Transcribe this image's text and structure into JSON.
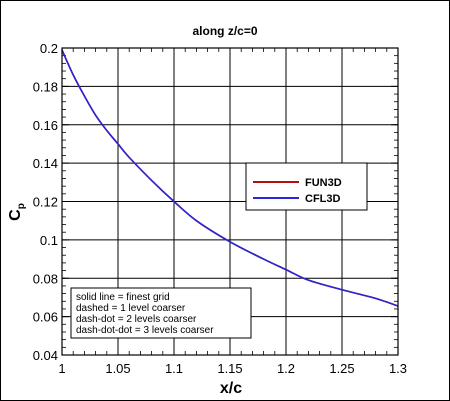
{
  "chart_data": {
    "type": "line",
    "title": "along z/c=0",
    "xlabel": "x/c",
    "ylabel_main": "C",
    "ylabel_sub": "p",
    "xlim": [
      1.0,
      1.3
    ],
    "ylim": [
      0.04,
      0.2
    ],
    "xticks": [
      "1",
      "1.05",
      "1.1",
      "1.15",
      "1.2",
      "1.25",
      "1.3"
    ],
    "yticks": [
      "0.04",
      "0.06",
      "0.08",
      "0.1",
      "0.12",
      "0.14",
      "0.16",
      "0.18",
      "0.2"
    ],
    "grid": true,
    "series": [
      {
        "name": "FUN3D",
        "color": "#b01010",
        "x": [
          1.0,
          1.01,
          1.02,
          1.03,
          1.04,
          1.05,
          1.06,
          1.08,
          1.1,
          1.12,
          1.15,
          1.18,
          1.2,
          1.22,
          1.25,
          1.28,
          1.3
        ],
        "y": [
          0.199,
          0.186,
          0.175,
          0.165,
          0.157,
          0.15,
          0.143,
          0.131,
          0.12,
          0.11,
          0.099,
          0.09,
          0.0845,
          0.079,
          0.074,
          0.0695,
          0.0655
        ]
      },
      {
        "name": "CFL3D",
        "color": "#2828d8",
        "x": [
          1.0,
          1.01,
          1.02,
          1.03,
          1.04,
          1.05,
          1.06,
          1.08,
          1.1,
          1.12,
          1.15,
          1.18,
          1.2,
          1.22,
          1.25,
          1.28,
          1.3
        ],
        "y": [
          0.199,
          0.186,
          0.175,
          0.165,
          0.157,
          0.15,
          0.143,
          0.131,
          0.12,
          0.11,
          0.099,
          0.09,
          0.0845,
          0.079,
          0.074,
          0.0695,
          0.0655
        ]
      }
    ],
    "legend": {
      "placement": "right",
      "entries": [
        "FUN3D",
        "CFL3D"
      ]
    },
    "notes": [
      "solid line = finest grid",
      "dashed = 1 level coarser",
      "dash-dot = 2 levels coarser",
      "dash-dot-dot = 3 levels coarser"
    ]
  }
}
